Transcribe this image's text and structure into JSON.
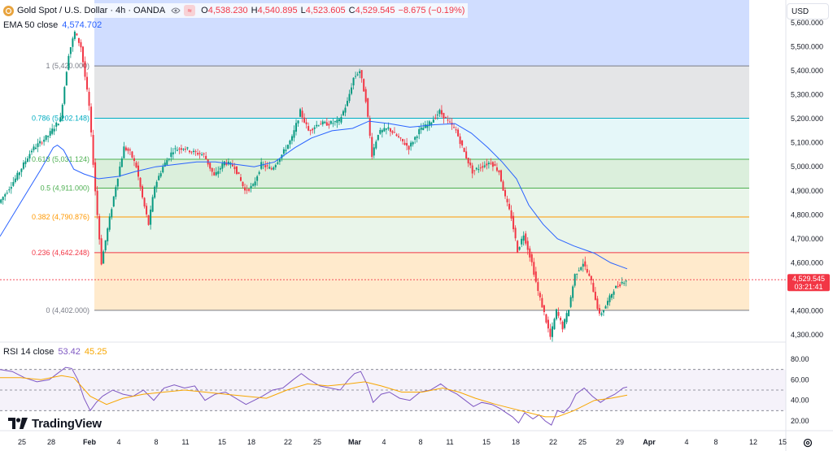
{
  "header": {
    "symbol_title": "Gold Spot / U.S. Dollar · 4h · OANDA",
    "open_label": "O",
    "open": "4,538.230",
    "high_label": "H",
    "high": "4,540.895",
    "low_label": "L",
    "low": "4,523.605",
    "close_label": "C",
    "close": "4,529.545",
    "change": "−8.675 (−0.19%)",
    "logo_icon": "gold-coin-icon",
    "visibility_icon": "eye-icon",
    "source_icon": "approx-icon"
  },
  "ema": {
    "label": "EMA 50 close",
    "value": "4,574.702",
    "color": "#2962ff"
  },
  "rsi": {
    "label": "RSI 14 close",
    "value": "53.42",
    "ma_value": "45.25",
    "color": "#7e57c2",
    "ma_color": "#f7a600"
  },
  "currency_button": "USD",
  "branding": "TradingView",
  "price_tag": {
    "price": "4,529.545",
    "countdown": "03:21:41",
    "color": "#f23645"
  },
  "chart_data": {
    "type": "candlestick",
    "price_axis": {
      "ticks": [
        "5,600.000",
        "5,500.000",
        "5,400.000",
        "5,300.000",
        "5,200.000",
        "5,100.000",
        "5,000.000",
        "4,900.000",
        "4,800.000",
        "4,700.000",
        "4,600.000",
        "4,400.000",
        "4,300.000"
      ]
    },
    "rsi_axis": {
      "ticks": [
        "80.00",
        "60.00",
        "40.00",
        "20.00"
      ],
      "band": [
        30,
        70
      ]
    },
    "x_axis": {
      "ticks": [
        "25",
        "28",
        "Feb",
        "4",
        "8",
        "11",
        "15",
        "18",
        "22",
        "25",
        "Mar",
        "4",
        "8",
        "11",
        "15",
        "18",
        "22",
        "25",
        "29",
        "Apr",
        "4",
        "8",
        "12",
        "15"
      ]
    },
    "fibonacci": [
      {
        "label": "1 (5,420.000)",
        "value": 5420,
        "color": "#787b86"
      },
      {
        "label": "0.786 (5,202.148)",
        "value": 5202.148,
        "color": "#00acc1"
      },
      {
        "label": "0.618 (5,031.124)",
        "value": 5031.124,
        "color": "#4caf50"
      },
      {
        "label": "0.5 (4,911.000)",
        "value": 4911,
        "color": "#4caf50"
      },
      {
        "label": "0.382 (4,790.876)",
        "value": 4790.876,
        "color": "#ff9800"
      },
      {
        "label": "0.236 (4,642.248)",
        "value": 4642.248,
        "color": "#f23645"
      },
      {
        "label": "0 (4,402.000)",
        "value": 4402,
        "color": "#787b86"
      }
    ],
    "candle_colors": {
      "up": "#089981",
      "down": "#f23645"
    },
    "price_path": [
      [
        0,
        4850
      ],
      [
        8,
        4950
      ],
      [
        16,
        5070
      ],
      [
        24,
        5130
      ],
      [
        30,
        5200
      ],
      [
        34,
        5470
      ],
      [
        37,
        5560
      ],
      [
        40,
        5500
      ],
      [
        44,
        5250
      ],
      [
        47,
        4900
      ],
      [
        50,
        4600
      ],
      [
        53,
        4740
      ],
      [
        57,
        4920
      ],
      [
        61,
        5080
      ],
      [
        64,
        5060
      ],
      [
        67,
        5000
      ],
      [
        70,
        4870
      ],
      [
        73,
        4760
      ],
      [
        76,
        4920
      ],
      [
        80,
        5000
      ],
      [
        85,
        5070
      ],
      [
        90,
        5080
      ],
      [
        95,
        5060
      ],
      [
        100,
        5050
      ],
      [
        105,
        4960
      ],
      [
        110,
        5020
      ],
      [
        115,
        5000
      ],
      [
        120,
        4900
      ],
      [
        124,
        4920
      ],
      [
        128,
        5010
      ],
      [
        133,
        4990
      ],
      [
        138,
        5050
      ],
      [
        143,
        5120
      ],
      [
        147,
        5230
      ],
      [
        151,
        5150
      ],
      [
        156,
        5180
      ],
      [
        161,
        5180
      ],
      [
        166,
        5190
      ],
      [
        170,
        5270
      ],
      [
        173,
        5370
      ],
      [
        176,
        5400
      ],
      [
        179,
        5280
      ],
      [
        182,
        5050
      ],
      [
        185,
        5140
      ],
      [
        190,
        5160
      ],
      [
        195,
        5120
      ],
      [
        200,
        5080
      ],
      [
        205,
        5150
      ],
      [
        210,
        5180
      ],
      [
        215,
        5230
      ],
      [
        219,
        5190
      ],
      [
        223,
        5150
      ],
      [
        227,
        5060
      ],
      [
        231,
        4980
      ],
      [
        235,
        5000
      ],
      [
        240,
        5020
      ],
      [
        244,
        4980
      ],
      [
        247,
        4870
      ],
      [
        250,
        4790
      ],
      [
        253,
        4650
      ],
      [
        256,
        4720
      ],
      [
        260,
        4600
      ],
      [
        263,
        4480
      ],
      [
        266,
        4390
      ],
      [
        269,
        4290
      ],
      [
        272,
        4400
      ],
      [
        275,
        4330
      ],
      [
        278,
        4410
      ],
      [
        281,
        4550
      ],
      [
        285,
        4600
      ],
      [
        289,
        4520
      ],
      [
        293,
        4380
      ],
      [
        296,
        4420
      ],
      [
        300,
        4490
      ],
      [
        304,
        4520
      ],
      [
        306,
        4530
      ]
    ],
    "ema_path": [
      [
        0,
        4710
      ],
      [
        10,
        4850
      ],
      [
        20,
        4990
      ],
      [
        26,
        5080
      ],
      [
        28,
        5090
      ],
      [
        31,
        5070
      ],
      [
        36,
        4990
      ],
      [
        41,
        4970
      ],
      [
        48,
        4950
      ],
      [
        58,
        4960
      ],
      [
        66,
        4980
      ],
      [
        76,
        5000
      ],
      [
        86,
        5010
      ],
      [
        96,
        5020
      ],
      [
        105,
        5020
      ],
      [
        115,
        5010
      ],
      [
        124,
        5000
      ],
      [
        134,
        5020
      ],
      [
        144,
        5080
      ],
      [
        152,
        5120
      ],
      [
        162,
        5150
      ],
      [
        172,
        5160
      ],
      [
        180,
        5190
      ],
      [
        190,
        5180
      ],
      [
        200,
        5165
      ],
      [
        212,
        5175
      ],
      [
        222,
        5180
      ],
      [
        230,
        5140
      ],
      [
        238,
        5080
      ],
      [
        245,
        5020
      ],
      [
        252,
        4950
      ],
      [
        258,
        4840
      ],
      [
        265,
        4760
      ],
      [
        272,
        4700
      ],
      [
        280,
        4670
      ],
      [
        290,
        4640
      ],
      [
        298,
        4600
      ],
      [
        306,
        4575
      ]
    ],
    "rsi_path": [
      [
        0,
        70
      ],
      [
        6,
        68
      ],
      [
        12,
        62
      ],
      [
        18,
        58
      ],
      [
        24,
        60
      ],
      [
        28,
        66
      ],
      [
        32,
        72
      ],
      [
        35,
        71
      ],
      [
        38,
        60
      ],
      [
        41,
        42
      ],
      [
        44,
        30
      ],
      [
        47,
        38
      ],
      [
        50,
        44
      ],
      [
        55,
        50
      ],
      [
        60,
        46
      ],
      [
        65,
        44
      ],
      [
        70,
        50
      ],
      [
        75,
        40
      ],
      [
        80,
        52
      ],
      [
        85,
        55
      ],
      [
        90,
        52
      ],
      [
        95,
        54
      ],
      [
        100,
        40
      ],
      [
        105,
        46
      ],
      [
        110,
        48
      ],
      [
        115,
        42
      ],
      [
        120,
        36
      ],
      [
        124,
        40
      ],
      [
        128,
        44
      ],
      [
        133,
        50
      ],
      [
        138,
        52
      ],
      [
        143,
        60
      ],
      [
        147,
        66
      ],
      [
        151,
        60
      ],
      [
        156,
        54
      ],
      [
        161,
        52
      ],
      [
        166,
        50
      ],
      [
        170,
        60
      ],
      [
        173,
        66
      ],
      [
        176,
        68
      ],
      [
        179,
        56
      ],
      [
        182,
        38
      ],
      [
        186,
        46
      ],
      [
        190,
        48
      ],
      [
        195,
        42
      ],
      [
        200,
        40
      ],
      [
        205,
        48
      ],
      [
        210,
        50
      ],
      [
        215,
        56
      ],
      [
        219,
        50
      ],
      [
        223,
        46
      ],
      [
        227,
        40
      ],
      [
        231,
        34
      ],
      [
        235,
        38
      ],
      [
        240,
        36
      ],
      [
        244,
        32
      ],
      [
        247,
        28
      ],
      [
        250,
        24
      ],
      [
        253,
        18
      ],
      [
        256,
        28
      ],
      [
        260,
        22
      ],
      [
        263,
        26
      ],
      [
        266,
        20
      ],
      [
        269,
        16
      ],
      [
        272,
        30
      ],
      [
        275,
        28
      ],
      [
        278,
        34
      ],
      [
        281,
        46
      ],
      [
        285,
        52
      ],
      [
        289,
        44
      ],
      [
        293,
        38
      ],
      [
        296,
        42
      ],
      [
        300,
        46
      ],
      [
        304,
        52
      ],
      [
        306,
        53
      ]
    ],
    "rsi_ma_path": [
      [
        0,
        62
      ],
      [
        10,
        62
      ],
      [
        20,
        60
      ],
      [
        30,
        64
      ],
      [
        36,
        62
      ],
      [
        44,
        44
      ],
      [
        52,
        36
      ],
      [
        60,
        42
      ],
      [
        70,
        46
      ],
      [
        80,
        48
      ],
      [
        90,
        50
      ],
      [
        100,
        48
      ],
      [
        110,
        46
      ],
      [
        120,
        44
      ],
      [
        130,
        42
      ],
      [
        140,
        50
      ],
      [
        150,
        56
      ],
      [
        160,
        54
      ],
      [
        170,
        56
      ],
      [
        178,
        58
      ],
      [
        186,
        54
      ],
      [
        196,
        48
      ],
      [
        206,
        48
      ],
      [
        216,
        52
      ],
      [
        224,
        48
      ],
      [
        232,
        42
      ],
      [
        242,
        36
      ],
      [
        250,
        32
      ],
      [
        258,
        28
      ],
      [
        266,
        24
      ],
      [
        272,
        24
      ],
      [
        280,
        30
      ],
      [
        290,
        40
      ],
      [
        298,
        42
      ],
      [
        306,
        45
      ]
    ]
  }
}
